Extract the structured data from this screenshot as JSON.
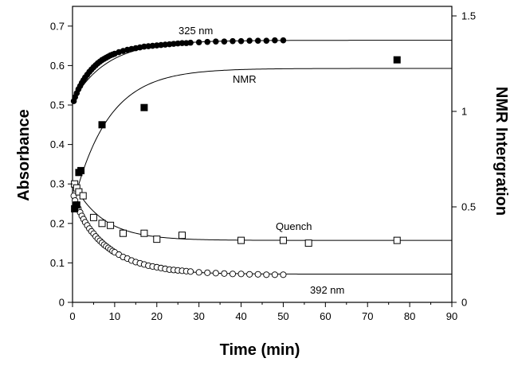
{
  "chart_data": {
    "type": "scatter",
    "xlabel": "Time (min)",
    "ylabel": "Absorbance",
    "y2label": "NMR Intergration",
    "xlim": [
      0,
      90
    ],
    "ylim": [
      0,
      0.75
    ],
    "y2lim": [
      0,
      1.55
    ],
    "x_ticks": [
      0,
      10,
      20,
      30,
      40,
      50,
      60,
      70,
      80,
      90
    ],
    "y_ticks": [
      0,
      0.1,
      0.2,
      0.3,
      0.4,
      0.5,
      0.6,
      0.7
    ],
    "y_tick_labels": [
      "0",
      "0.1",
      "0.2",
      "0.3",
      "0.4",
      "0.5",
      "0.6",
      "0.7"
    ],
    "y2_ticks": [
      0,
      0.5,
      1,
      1.5
    ],
    "y2_tick_labels": [
      "0",
      "0.5",
      "1",
      "1.5"
    ],
    "grid": false,
    "series": [
      {
        "name": "325 nm",
        "axis": "left",
        "marker": "filled-circle",
        "x": [
          0.3,
          0.6,
          1,
          1.4,
          1.8,
          2.2,
          2.6,
          3,
          3.5,
          4,
          4.5,
          5,
          5.5,
          6,
          6.5,
          7,
          7.5,
          8,
          8.5,
          9,
          9.5,
          10,
          11,
          12,
          13,
          14,
          15,
          16,
          17,
          18,
          19,
          20,
          21,
          22,
          23,
          24,
          25,
          26,
          27,
          28,
          30,
          32,
          34,
          36,
          38,
          40,
          42,
          44,
          46,
          48,
          50
        ],
        "y": [
          0.51,
          0.52,
          0.53,
          0.54,
          0.548,
          0.556,
          0.563,
          0.57,
          0.577,
          0.584,
          0.59,
          0.596,
          0.601,
          0.606,
          0.61,
          0.614,
          0.617,
          0.62,
          0.623,
          0.626,
          0.628,
          0.63,
          0.634,
          0.637,
          0.64,
          0.642,
          0.644,
          0.646,
          0.648,
          0.649,
          0.65,
          0.651,
          0.652,
          0.653,
          0.654,
          0.655,
          0.656,
          0.657,
          0.657,
          0.658,
          0.659,
          0.66,
          0.661,
          0.661,
          0.662,
          0.662,
          0.663,
          0.663,
          0.663,
          0.664,
          0.664
        ]
      },
      {
        "name": "392 nm",
        "axis": "left",
        "marker": "open-circle",
        "x": [
          0.3,
          0.6,
          1,
          1.4,
          1.8,
          2.2,
          2.6,
          3,
          3.5,
          4,
          4.5,
          5,
          5.5,
          6,
          6.5,
          7,
          7.5,
          8,
          8.5,
          9,
          9.5,
          10,
          11,
          12,
          13,
          14,
          15,
          16,
          17,
          18,
          19,
          20,
          21,
          22,
          23,
          24,
          25,
          26,
          27,
          28,
          30,
          32,
          34,
          36,
          38,
          40,
          42,
          44,
          46,
          48,
          50
        ],
        "y": [
          0.27,
          0.258,
          0.248,
          0.238,
          0.228,
          0.219,
          0.211,
          0.203,
          0.195,
          0.187,
          0.18,
          0.174,
          0.167,
          0.161,
          0.156,
          0.151,
          0.146,
          0.142,
          0.138,
          0.134,
          0.13,
          0.127,
          0.121,
          0.115,
          0.111,
          0.106,
          0.102,
          0.099,
          0.096,
          0.093,
          0.091,
          0.089,
          0.087,
          0.085,
          0.083,
          0.082,
          0.081,
          0.08,
          0.079,
          0.078,
          0.076,
          0.075,
          0.074,
          0.073,
          0.072,
          0.072,
          0.071,
          0.071,
          0.07,
          0.07,
          0.07
        ]
      },
      {
        "name": "NMR",
        "axis": "right",
        "marker": "filled-square",
        "x": [
          0.5,
          1,
          1.5,
          2,
          7,
          17,
          77
        ],
        "y": [
          0.49,
          0.51,
          0.68,
          0.69,
          0.93,
          1.02,
          1.27
        ]
      },
      {
        "name": "Quench",
        "axis": "left",
        "marker": "open-square",
        "x": [
          0.5,
          1,
          1.5,
          2.5,
          5,
          7,
          9,
          12,
          17,
          20,
          26,
          40,
          50,
          56,
          77
        ],
        "y": [
          0.3,
          0.29,
          0.28,
          0.27,
          0.215,
          0.2,
          0.195,
          0.175,
          0.175,
          0.16,
          0.17,
          0.157,
          0.157,
          0.15,
          0.157
        ]
      }
    ],
    "fits": [
      {
        "name": "325 nm",
        "axis": "left",
        "y0": 0.51,
        "yinf": 0.664,
        "k": 0.12
      },
      {
        "name": "392 nm",
        "axis": "left",
        "y0": 0.275,
        "yinf": 0.0715,
        "k": 0.13
      },
      {
        "name": "NMR",
        "axis": "right",
        "y0": 0.5,
        "yinf": 1.225,
        "k": 0.12
      },
      {
        "name": "Quench",
        "axis": "left",
        "y0": 0.305,
        "yinf": 0.157,
        "k": 0.14
      }
    ],
    "annotations": [
      {
        "text": "325 nm",
        "series": "325 nm"
      },
      {
        "text": "NMR",
        "series": "NMR"
      },
      {
        "text": "Quench",
        "series": "Quench"
      },
      {
        "text": "392 nm",
        "series": "392 nm"
      }
    ]
  }
}
